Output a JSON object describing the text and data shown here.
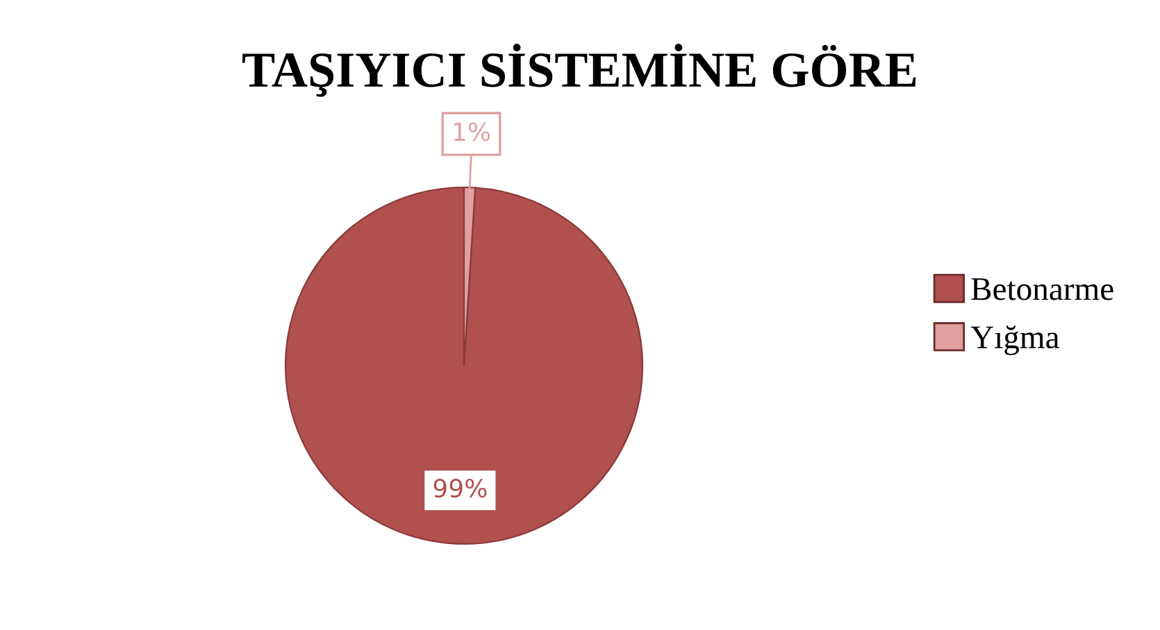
{
  "chart_data": {
    "type": "pie",
    "title": "TAŞIYICI SİSTEMİNE GÖRE",
    "categories": [
      "Betonarme",
      "Yığma"
    ],
    "values": [
      99,
      1
    ],
    "colors": [
      "#b0504f",
      "#e0a0a0"
    ],
    "value_labels": [
      "99%",
      "1%"
    ],
    "legend": "right"
  }
}
